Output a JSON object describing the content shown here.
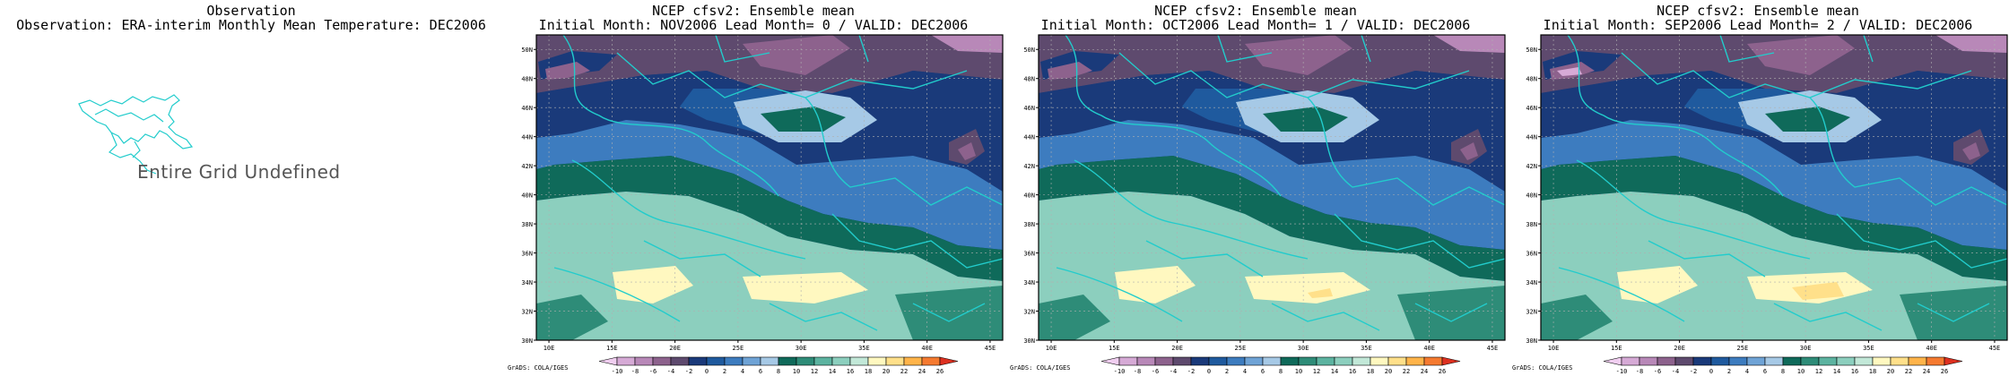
{
  "observation": {
    "title": "Observation",
    "subtitle": "Observation: ERA-interim Monthly Mean Temperature: DEC2006",
    "message": "Entire Grid Undefined"
  },
  "forecasts": [
    {
      "title": "NCEP cfsv2: Ensemble mean",
      "subtitle": "Initial Month: NOV2006   Lead Month= 0 / VALID: DEC2006"
    },
    {
      "title": "NCEP cfsv2: Ensemble mean",
      "subtitle": "Initial Month: OCT2006   Lead Month= 1 / VALID: DEC2006"
    },
    {
      "title": "NCEP cfsv2: Ensemble mean",
      "subtitle": "Initial Month: SEP2006   Lead Month= 2 / VALID: DEC2006"
    }
  ],
  "axes": {
    "lat_labels": [
      "30N",
      "32N",
      "34N",
      "36N",
      "38N",
      "40N",
      "42N",
      "44N",
      "46N",
      "48N",
      "50N"
    ],
    "lon_labels": [
      "10E",
      "15E",
      "20E",
      "25E",
      "30E",
      "35E",
      "40E",
      "45E"
    ],
    "lat_range": [
      30,
      51
    ],
    "lon_range": [
      9,
      46
    ]
  },
  "colorbar": {
    "credit": "GrADS: COLA/IGES",
    "labels": [
      "-10",
      "-8",
      "-6",
      "-4",
      "-2",
      "0",
      "2",
      "4",
      "6",
      "8",
      "10",
      "12",
      "14",
      "16",
      "18",
      "20",
      "22",
      "24",
      "26"
    ],
    "colors": [
      "#f0cef0",
      "#d6aad6",
      "#b888b8",
      "#8d628d",
      "#5e4a6e",
      "#1a3a7a",
      "#1f5a9e",
      "#3d7cbf",
      "#6fa3d6",
      "#a6c9e6",
      "#0f6a5a",
      "#2e8c78",
      "#5cb3a0",
      "#8ccfbe",
      "#c2e8d8",
      "#fff8c0",
      "#ffe08a",
      "#ffb44a",
      "#f57a30",
      "#dd3020"
    ]
  },
  "colors": {
    "boundaries": "#22cccc",
    "frame": "#000000",
    "grid": "#b0b0b0"
  }
}
